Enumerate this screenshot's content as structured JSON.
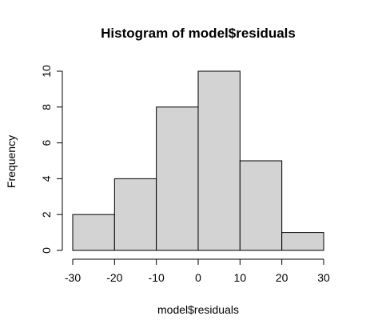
{
  "chart_data": {
    "type": "bar",
    "title": "Histogram of model$residuals",
    "xlabel": "model$residuals",
    "ylabel": "Frequency",
    "bins": [
      {
        "start": -30,
        "end": -20,
        "value": 2
      },
      {
        "start": -20,
        "end": -10,
        "value": 4
      },
      {
        "start": -10,
        "end": 0,
        "value": 8
      },
      {
        "start": 0,
        "end": 10,
        "value": 10
      },
      {
        "start": 10,
        "end": 20,
        "value": 5
      },
      {
        "start": 20,
        "end": 30,
        "value": 1
      }
    ],
    "xlim": [
      -30,
      30
    ],
    "ylim": [
      0,
      10
    ],
    "x_ticks": [
      "-30",
      "-20",
      "-10",
      "0",
      "10",
      "20",
      "30"
    ],
    "y_ticks": [
      "0",
      "2",
      "4",
      "6",
      "8",
      "10"
    ],
    "grid": false,
    "bar_color": "#d3d3d3",
    "edge_color": "#000000"
  }
}
